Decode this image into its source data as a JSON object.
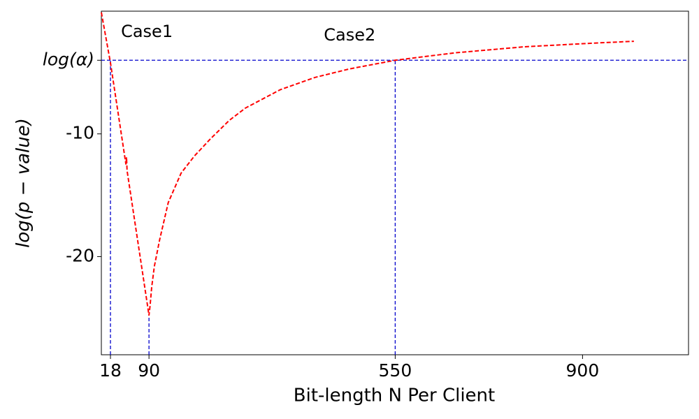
{
  "chart_data": {
    "type": "line",
    "x_label": "Bit-length N Per Client",
    "y_label": "log(p − value)",
    "x": [
      1,
      18,
      47,
      48,
      49,
      88,
      90,
      92,
      95,
      100,
      110,
      126,
      150,
      175,
      205,
      240,
      270,
      335,
      400,
      465,
      550,
      661,
      791,
      922,
      996
    ],
    "series": [
      {
        "color": "#ff0000",
        "values": [
          -0.1,
          -4.2,
          -12.5,
          -11.9,
          -13.0,
          -24.2,
          -24.8,
          -24.0,
          -22.5,
          -20.8,
          -18.6,
          -15.6,
          -13.2,
          -11.8,
          -10.4,
          -8.9,
          -7.9,
          -6.4,
          -5.4,
          -4.7,
          -4.0,
          -3.4,
          -2.9,
          -2.6,
          -2.45
        ]
      }
    ],
    "xlim": [
      1,
      1098
    ],
    "ylim": [
      -28,
      0
    ],
    "xticks": [
      18,
      90,
      550,
      900
    ],
    "yticks": [
      {
        "value": -4,
        "label": "log(α)"
      },
      -10,
      -20
    ],
    "reference_color": "#0000cc",
    "hline": -4,
    "vlines": [
      {
        "x": 18,
        "y": -4
      },
      {
        "x": 90,
        "y": -24.8
      },
      {
        "x": 550,
        "y": -4
      }
    ],
    "annotations": [
      {
        "text": "Case1",
        "x": 86,
        "y": -1.7
      },
      {
        "text": "Case2",
        "x": 465,
        "y": -2.0
      }
    ]
  }
}
